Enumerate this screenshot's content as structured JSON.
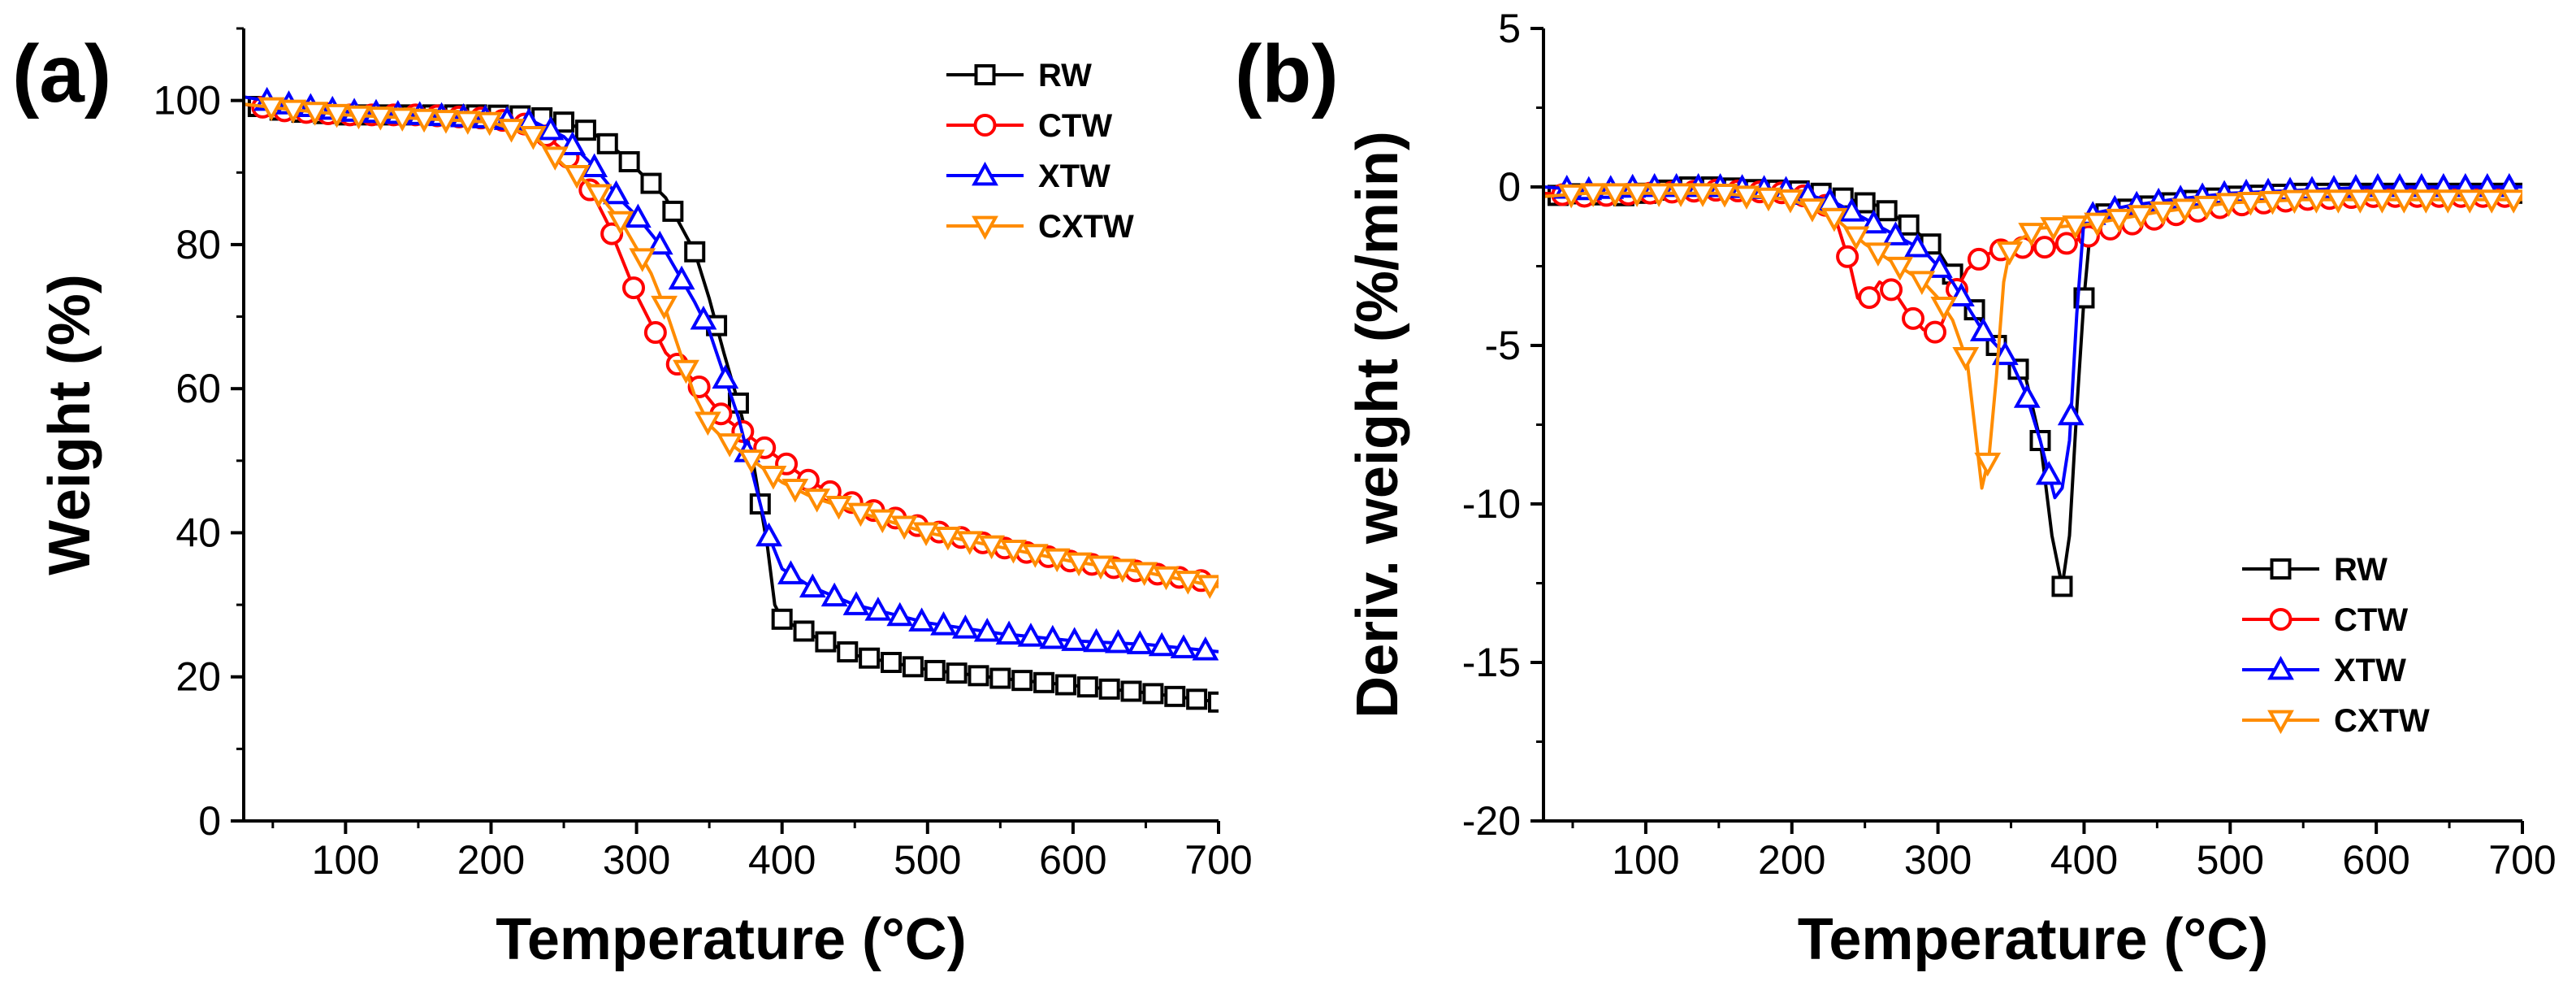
{
  "chart_data": [
    {
      "panel": "(a)",
      "type": "line",
      "xlabel": "Temperature (°C)",
      "ylabel": "Weight (%)",
      "xlim": [
        30,
        700
      ],
      "ylim": [
        0,
        110
      ],
      "xticks": [
        100,
        200,
        300,
        400,
        500,
        600,
        700
      ],
      "yticks": [
        0,
        20,
        40,
        60,
        80,
        100
      ],
      "legend_position": "top-right",
      "series": [
        {
          "name": "RW",
          "color": "#000000",
          "marker": "square",
          "x": [
            30,
            60,
            100,
            150,
            200,
            230,
            250,
            270,
            290,
            300,
            320,
            340,
            350,
            360,
            370,
            380,
            390,
            395,
            400,
            420,
            450,
            500,
            550,
            600,
            650,
            700
          ],
          "y": [
            99.5,
            98.5,
            98,
            98,
            98,
            97.8,
            97,
            95.5,
            92.5,
            90.5,
            86.5,
            79,
            72.5,
            65,
            58,
            50,
            38,
            30,
            28,
            25.8,
            23,
            21,
            19.8,
            18.8,
            17.8,
            16.5
          ]
        },
        {
          "name": "CTW",
          "color": "#ff0000",
          "marker": "circle",
          "x": [
            30,
            60,
            100,
            150,
            200,
            230,
            250,
            270,
            280,
            290,
            300,
            320,
            340,
            360,
            380,
            400,
            420,
            450,
            500,
            550,
            600,
            650,
            700
          ],
          "y": [
            99.5,
            98.5,
            98,
            98,
            97.5,
            96.5,
            93,
            87,
            83,
            78,
            73,
            65,
            61,
            56,
            53,
            50,
            47,
            44,
            40.5,
            38,
            36,
            34.5,
            33
          ]
        },
        {
          "name": "XTW",
          "color": "#0000ff",
          "marker": "triangle-up",
          "x": [
            30,
            60,
            100,
            150,
            200,
            230,
            250,
            270,
            290,
            300,
            320,
            340,
            350,
            360,
            370,
            380,
            390,
            400,
            420,
            450,
            500,
            550,
            600,
            650,
            700
          ],
          "y": [
            100.5,
            99.5,
            98.5,
            98,
            97.5,
            97,
            95,
            91,
            86,
            84,
            79,
            72,
            68,
            62,
            56,
            48,
            40,
            35,
            32.5,
            30,
            27.5,
            26,
            25,
            24.5,
            23.5
          ]
        },
        {
          "name": "CXTW",
          "color": "#ff8c00",
          "marker": "triangle-down",
          "x": [
            30,
            60,
            100,
            150,
            200,
            230,
            250,
            270,
            290,
            310,
            320,
            340,
            350,
            360,
            370,
            380,
            390,
            400,
            420,
            450,
            500,
            550,
            600,
            650,
            700
          ],
          "y": [
            99.5,
            98.8,
            98,
            97.5,
            97,
            95,
            91,
            88,
            83,
            76,
            71,
            59,
            55,
            53,
            51.5,
            50,
            48.5,
            47,
            45,
            43,
            40,
            38,
            36,
            34.5,
            32.5
          ]
        }
      ]
    },
    {
      "panel": "(b)",
      "type": "line",
      "xlabel": "Temperature (°C)",
      "ylabel": "Deriv. weight (%/min)",
      "xlim": [
        30,
        700
      ],
      "ylim": [
        -20,
        5
      ],
      "xticks": [
        100,
        200,
        300,
        400,
        500,
        600,
        700
      ],
      "yticks": [
        5,
        0,
        -5,
        -10,
        -15,
        -20
      ],
      "legend_position": "bottom-right",
      "series": [
        {
          "name": "RW",
          "color": "#000000",
          "marker": "square",
          "x": [
            30,
            60,
            80,
            100,
            130,
            150,
            180,
            200,
            220,
            240,
            260,
            280,
            300,
            320,
            340,
            350,
            360,
            370,
            378,
            385,
            390,
            395,
            400,
            405,
            410,
            430,
            460,
            500,
            550,
            600,
            650,
            700
          ],
          "y": [
            -0.3,
            -0.2,
            -0.3,
            -0.2,
            0,
            0,
            -0.1,
            -0.1,
            -0.2,
            -0.4,
            -0.6,
            -1.2,
            -2,
            -3.5,
            -5,
            -5.5,
            -6,
            -8,
            -11,
            -12.6,
            -11,
            -7,
            -3.5,
            -1,
            -0.9,
            -0.7,
            -0.5,
            -0.3,
            -0.2,
            -0.2,
            -0.2,
            -0.2
          ]
        },
        {
          "name": "CTW",
          "color": "#ff0000",
          "marker": "circle",
          "x": [
            30,
            60,
            100,
            150,
            200,
            220,
            230,
            240,
            245,
            250,
            260,
            270,
            280,
            290,
            300,
            310,
            320,
            330,
            340,
            360,
            380,
            400,
            420,
            460,
            500,
            550,
            600,
            650,
            700
          ],
          "y": [
            -0.2,
            -0.3,
            -0.2,
            -0.1,
            -0.2,
            -0.4,
            -1,
            -2.5,
            -3.5,
            -3.7,
            -3,
            -3.3,
            -4,
            -4.5,
            -4.6,
            -3.5,
            -2.6,
            -2.2,
            -2,
            -1.9,
            -1.9,
            -1.6,
            -1.3,
            -0.9,
            -0.6,
            -0.4,
            -0.3,
            -0.3,
            -0.3
          ]
        },
        {
          "name": "XTW",
          "color": "#0000ff",
          "marker": "triangle-up",
          "x": [
            30,
            60,
            100,
            150,
            200,
            230,
            250,
            270,
            290,
            310,
            330,
            350,
            360,
            370,
            380,
            385,
            390,
            395,
            400,
            410,
            430,
            460,
            500,
            550,
            600,
            650,
            700
          ],
          "y": [
            0,
            -0.1,
            0,
            0,
            -0.1,
            -0.5,
            -1,
            -1.5,
            -2,
            -3,
            -4.5,
            -5.5,
            -6.5,
            -8,
            -9.8,
            -9.5,
            -8,
            -4,
            -1,
            -0.8,
            -0.6,
            -0.4,
            -0.2,
            -0.1,
            0,
            0,
            0
          ]
        },
        {
          "name": "CXTW",
          "color": "#ff8c00",
          "marker": "triangle-down",
          "x": [
            30,
            60,
            100,
            150,
            200,
            230,
            250,
            270,
            290,
            300,
            310,
            320,
            325,
            330,
            335,
            340,
            345,
            350,
            370,
            400,
            450,
            500,
            550,
            600,
            650,
            700
          ],
          "y": [
            -0.3,
            -0.2,
            -0.2,
            -0.2,
            -0.4,
            -1,
            -1.8,
            -2.4,
            -3,
            -3.5,
            -4.2,
            -5.5,
            -7.5,
            -9.5,
            -8.5,
            -6,
            -3,
            -1.8,
            -1.3,
            -1.2,
            -0.8,
            -0.5,
            -0.4,
            -0.4,
            -0.4,
            -0.4
          ]
        }
      ]
    }
  ]
}
